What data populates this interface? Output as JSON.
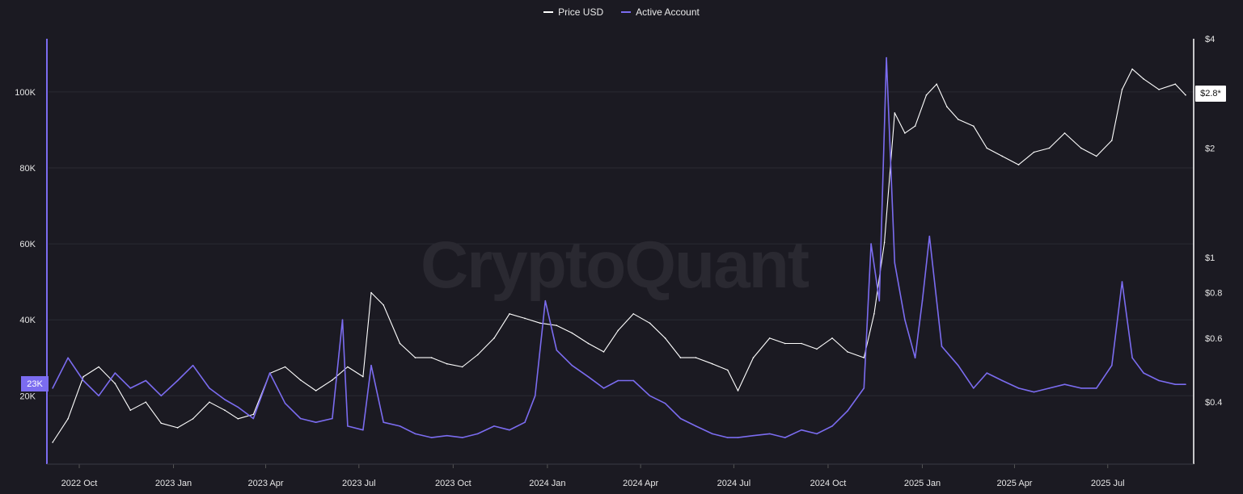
{
  "legend": {
    "price_label": "Price USD",
    "active_label": "Active Account",
    "price_color": "#ffffff",
    "active_color": "#7b6cf0"
  },
  "watermark": "CryptoQuant",
  "badges": {
    "left_value": "23K",
    "right_value": "$2.8*"
  },
  "chart_data": {
    "type": "line",
    "x_axis": {
      "ticks": [
        "2022 Oct",
        "2023 Jan",
        "2023 Apr",
        "2023 Jul",
        "2023 Oct",
        "2024 Jan",
        "2024 Apr",
        "2024 Jul",
        "2024 Oct",
        "2025 Jan",
        "2025 Apr",
        "2025 Jul"
      ],
      "range": [
        "2022-09-01",
        "2025-09-15"
      ]
    },
    "y_left": {
      "ticks": [
        "20K",
        "40K",
        "60K",
        "80K",
        "100K"
      ],
      "values": [
        20000,
        40000,
        60000,
        80000,
        100000
      ],
      "range": [
        2000,
        114000
      ]
    },
    "y_right": {
      "scale": "log",
      "ticks": [
        "$0.4",
        "$0.6",
        "$0.8",
        "$1",
        "$2",
        "$4"
      ],
      "values": [
        0.4,
        0.6,
        0.8,
        1,
        2,
        4
      ],
      "range": [
        0.27,
        4
      ]
    },
    "grid": true,
    "legend_position": "top-center",
    "series": [
      {
        "name": "Price USD",
        "axis": "right",
        "x": [
          "2022-09-05",
          "2022-09-20",
          "2022-10-05",
          "2022-10-20",
          "2022-11-05",
          "2022-11-20",
          "2022-12-05",
          "2022-12-20",
          "2023-01-05",
          "2023-01-20",
          "2023-02-05",
          "2023-02-20",
          "2023-03-05",
          "2023-03-20",
          "2023-04-05",
          "2023-04-20",
          "2023-05-05",
          "2023-05-20",
          "2023-06-05",
          "2023-06-20",
          "2023-07-05",
          "2023-07-13",
          "2023-07-25",
          "2023-08-10",
          "2023-08-25",
          "2023-09-10",
          "2023-09-25",
          "2023-10-10",
          "2023-10-25",
          "2023-11-10",
          "2023-11-25",
          "2023-12-10",
          "2023-12-25",
          "2024-01-10",
          "2024-01-25",
          "2024-02-10",
          "2024-02-25",
          "2024-03-10",
          "2024-03-25",
          "2024-04-10",
          "2024-04-25",
          "2024-05-10",
          "2024-05-25",
          "2024-06-10",
          "2024-06-25",
          "2024-07-05",
          "2024-07-20",
          "2024-08-05",
          "2024-08-20",
          "2024-09-05",
          "2024-09-20",
          "2024-10-05",
          "2024-10-20",
          "2024-11-05",
          "2024-11-15",
          "2024-11-25",
          "2024-12-05",
          "2024-12-15",
          "2024-12-25",
          "2025-01-05",
          "2025-01-15",
          "2025-01-25",
          "2025-02-05",
          "2025-02-20",
          "2025-03-05",
          "2025-03-20",
          "2025-04-05",
          "2025-04-20",
          "2025-05-05",
          "2025-05-20",
          "2025-06-05",
          "2025-06-20",
          "2025-07-05",
          "2025-07-15",
          "2025-07-25",
          "2025-08-05",
          "2025-08-20",
          "2025-09-05",
          "2025-09-15"
        ],
        "values": [
          0.31,
          0.36,
          0.47,
          0.5,
          0.45,
          0.38,
          0.4,
          0.35,
          0.34,
          0.36,
          0.4,
          0.38,
          0.36,
          0.37,
          0.48,
          0.5,
          0.46,
          0.43,
          0.46,
          0.5,
          0.47,
          0.8,
          0.74,
          0.58,
          0.53,
          0.53,
          0.51,
          0.5,
          0.54,
          0.6,
          0.7,
          0.68,
          0.66,
          0.65,
          0.62,
          0.58,
          0.55,
          0.63,
          0.7,
          0.66,
          0.6,
          0.53,
          0.53,
          0.51,
          0.49,
          0.43,
          0.53,
          0.6,
          0.58,
          0.58,
          0.56,
          0.6,
          0.55,
          0.53,
          0.7,
          1.1,
          2.5,
          2.2,
          2.3,
          2.8,
          3.0,
          2.6,
          2.4,
          2.3,
          2.0,
          1.9,
          1.8,
          1.95,
          2.0,
          2.2,
          2.0,
          1.9,
          2.1,
          2.9,
          3.3,
          3.1,
          2.9,
          3.0,
          2.8
        ]
      },
      {
        "name": "Active Account",
        "axis": "left",
        "x": [
          "2022-09-05",
          "2022-09-20",
          "2022-10-05",
          "2022-10-20",
          "2022-11-05",
          "2022-11-20",
          "2022-12-05",
          "2022-12-20",
          "2023-01-05",
          "2023-01-20",
          "2023-02-05",
          "2023-02-20",
          "2023-03-05",
          "2023-03-20",
          "2023-04-05",
          "2023-04-20",
          "2023-05-05",
          "2023-05-20",
          "2023-06-05",
          "2023-06-15",
          "2023-06-20",
          "2023-07-05",
          "2023-07-13",
          "2023-07-25",
          "2023-08-10",
          "2023-08-25",
          "2023-09-10",
          "2023-09-25",
          "2023-10-10",
          "2023-10-25",
          "2023-11-10",
          "2023-11-25",
          "2023-12-10",
          "2023-12-20",
          "2023-12-30",
          "2024-01-10",
          "2024-01-25",
          "2024-02-10",
          "2024-02-25",
          "2024-03-10",
          "2024-03-25",
          "2024-04-10",
          "2024-04-25",
          "2024-05-10",
          "2024-05-25",
          "2024-06-10",
          "2024-06-25",
          "2024-07-05",
          "2024-07-20",
          "2024-08-05",
          "2024-08-20",
          "2024-09-05",
          "2024-09-20",
          "2024-10-05",
          "2024-10-20",
          "2024-11-05",
          "2024-11-12",
          "2024-11-20",
          "2024-11-27",
          "2024-12-05",
          "2024-12-15",
          "2024-12-25",
          "2025-01-01",
          "2025-01-08",
          "2025-01-20",
          "2025-02-05",
          "2025-02-20",
          "2025-03-05",
          "2025-03-20",
          "2025-04-05",
          "2025-04-20",
          "2025-05-05",
          "2025-05-20",
          "2025-06-05",
          "2025-06-20",
          "2025-07-05",
          "2025-07-15",
          "2025-07-25",
          "2025-08-05",
          "2025-08-20",
          "2025-09-05",
          "2025-09-15"
        ],
        "values": [
          22000,
          30000,
          24000,
          20000,
          26000,
          22000,
          24000,
          20000,
          24000,
          28000,
          22000,
          19000,
          17000,
          14000,
          26000,
          18000,
          14000,
          13000,
          14000,
          40000,
          12000,
          11000,
          28000,
          13000,
          12000,
          10000,
          9000,
          9500,
          9000,
          10000,
          12000,
          11000,
          13000,
          20000,
          45000,
          32000,
          28000,
          25000,
          22000,
          24000,
          24000,
          20000,
          18000,
          14000,
          12000,
          10000,
          9000,
          9000,
          9500,
          10000,
          9000,
          11000,
          10000,
          12000,
          16000,
          22000,
          60000,
          45000,
          109000,
          55000,
          40000,
          30000,
          45000,
          62000,
          33000,
          28000,
          22000,
          26000,
          24000,
          22000,
          21000,
          22000,
          23000,
          22000,
          22000,
          28000,
          50000,
          30000,
          26000,
          24000,
          23000,
          23000
        ]
      }
    ]
  }
}
